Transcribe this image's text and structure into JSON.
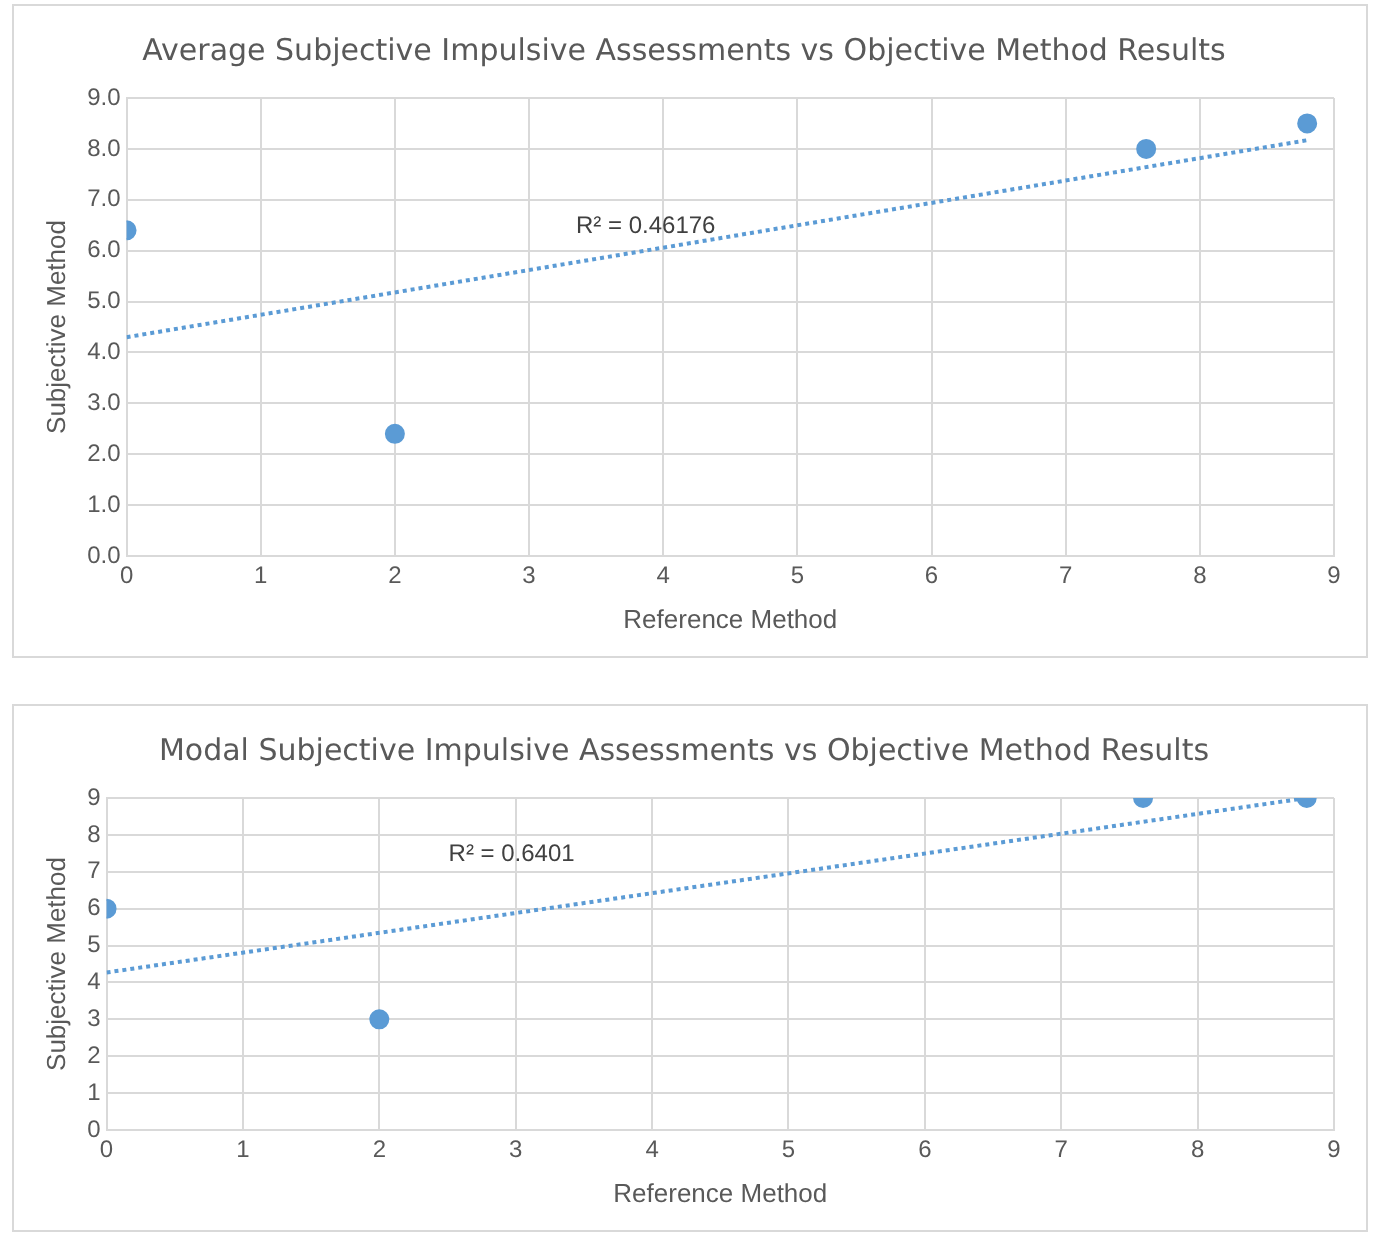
{
  "chart_data": [
    {
      "type": "scatter",
      "title": "Average Subjective Impulsive Assessments vs Objective Method Results",
      "xlabel": "Reference Method",
      "ylabel": "Subjective Method",
      "series": [
        {
          "type": "scatter",
          "color": "#5b9bd5",
          "x": [
            0,
            2,
            7.6,
            8.8
          ],
          "values": [
            6.4,
            2.4,
            8.0,
            8.5
          ],
          "marker": "circle"
        },
        {
          "type": "line",
          "color": "#5b9bd5",
          "x": [
            0,
            8.8
          ],
          "values": [
            4.3,
            8.17
          ],
          "line_style": "dotted",
          "marker": "none"
        }
      ],
      "xlim": [
        0,
        9
      ],
      "xticks": [
        0,
        1,
        2,
        3,
        4,
        5,
        6,
        7,
        8,
        9
      ],
      "ylim": [
        0,
        9
      ],
      "yticks": [
        {
          "value": 0,
          "label": "0.0"
        },
        {
          "value": 1,
          "label": "1.0"
        },
        {
          "value": 2,
          "label": "2.0"
        },
        {
          "value": 3,
          "label": "3.0"
        },
        {
          "value": 4,
          "label": "4.0"
        },
        {
          "value": 5,
          "label": "5.0"
        },
        {
          "value": 6,
          "label": "6.0"
        },
        {
          "value": 7,
          "label": "7.0"
        },
        {
          "value": 8,
          "label": "8.0"
        },
        {
          "value": 9,
          "label": "9.0"
        }
      ],
      "annotations": [
        "R² = 0.46176"
      ],
      "grid": true,
      "legend": false
    },
    {
      "type": "scatter",
      "title": "Modal Subjective Impulsive Assessments vs Objective Method Results",
      "xlabel": "Reference Method",
      "ylabel": "Subjective Method",
      "series": [
        {
          "type": "scatter",
          "color": "#5b9bd5",
          "x": [
            0,
            2,
            7.6,
            8.8
          ],
          "values": [
            6,
            3,
            9,
            9
          ],
          "marker": "circle"
        },
        {
          "type": "line",
          "color": "#5b9bd5",
          "x": [
            0,
            8.8
          ],
          "values": [
            4.27,
            9.0
          ],
          "line_style": "dotted",
          "marker": "none"
        }
      ],
      "xlim": [
        0,
        9
      ],
      "xticks": [
        0,
        1,
        2,
        3,
        4,
        5,
        6,
        7,
        8,
        9
      ],
      "ylim": [
        0,
        9
      ],
      "yticks": [
        0,
        1,
        2,
        3,
        4,
        5,
        6,
        7,
        8,
        9
      ],
      "annotations": [
        "R² = 0.6401"
      ],
      "grid": true,
      "legend": false
    }
  ]
}
